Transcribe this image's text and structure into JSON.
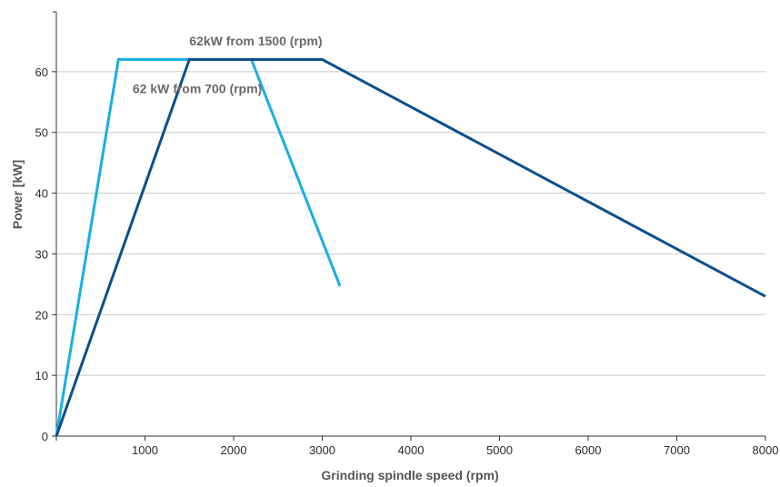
{
  "chart_data": {
    "type": "line",
    "title": "",
    "xlabel": "Grinding spindle speed (rpm)",
    "ylabel": "Power [kW]",
    "xlim": [
      0,
      8000
    ],
    "ylim": [
      0,
      70
    ],
    "x_ticks": [
      1000,
      2000,
      3000,
      4000,
      5000,
      6000,
      7000,
      8000
    ],
    "y_ticks": [
      0,
      10,
      20,
      30,
      40,
      50,
      60
    ],
    "grid": true,
    "series": [
      {
        "color": "#1aaee5",
        "points": [
          [
            0,
            0
          ],
          [
            700,
            62
          ],
          [
            2200,
            62
          ],
          [
            3200,
            24.7
          ]
        ]
      },
      {
        "color": "#0c4f8e",
        "points": [
          [
            0,
            0
          ],
          [
            1500,
            62
          ],
          [
            3000,
            62
          ],
          [
            8000,
            23
          ]
        ]
      }
    ],
    "annotations": [
      {
        "text": "62kW from 1500 (rpm)",
        "x": 1500,
        "y": 64.3,
        "anchor": "start"
      },
      {
        "text": "62 kW  from 700 (rpm)",
        "x": 860,
        "y": 56.5,
        "anchor": "start"
      }
    ]
  }
}
